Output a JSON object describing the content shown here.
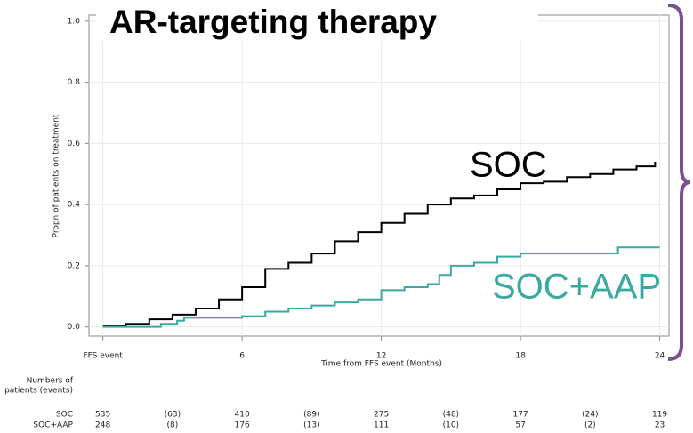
{
  "chart_data": {
    "type": "step",
    "title": "AR-targeting therapy",
    "xlabel": "Time from FFS event (Months)",
    "ylabel": "Propn of patients on treatment",
    "xlim": [
      -0.6,
      24.4
    ],
    "ylim": [
      -0.03,
      1.02
    ],
    "xticks": [
      {
        "value": 0,
        "label": "FFS event"
      },
      6,
      12,
      18,
      24
    ],
    "yticks": [
      {
        "value": 0,
        "label": "0.0"
      },
      0.2,
      0.4,
      0.6,
      0.8,
      {
        "value": 1,
        "label": "1.0"
      }
    ],
    "grid": true,
    "series": [
      {
        "name": "SOC",
        "color": "#000000",
        "x": [
          0,
          1,
          2,
          3,
          4,
          5,
          6,
          7,
          8,
          9,
          10,
          11,
          12,
          13,
          14,
          15,
          16,
          17,
          18,
          19,
          20,
          21,
          22,
          23,
          23.8
        ],
        "values": [
          0.005,
          0.01,
          0.025,
          0.04,
          0.06,
          0.09,
          0.13,
          0.19,
          0.21,
          0.24,
          0.28,
          0.31,
          0.34,
          0.37,
          0.4,
          0.42,
          0.43,
          0.45,
          0.47,
          0.475,
          0.49,
          0.5,
          0.515,
          0.525,
          0.54
        ]
      },
      {
        "name": "SOC+AAP",
        "color": "#3aa99f",
        "x": [
          0,
          2.5,
          3.2,
          3.5,
          6,
          7,
          8,
          9,
          10,
          11,
          12,
          13,
          14,
          14.5,
          15,
          16,
          17,
          18,
          22.2,
          24
        ],
        "values": [
          0,
          0.01,
          0.02,
          0.03,
          0.035,
          0.05,
          0.06,
          0.07,
          0.08,
          0.09,
          0.12,
          0.13,
          0.14,
          0.17,
          0.2,
          0.21,
          0.23,
          0.24,
          0.26,
          0.26
        ]
      }
    ],
    "annotations": [
      "SOC",
      "SOC+AAP"
    ],
    "risk_table": {
      "heading": [
        "Numbers of",
        "patients (events)"
      ],
      "rows": [
        {
          "label": "SOC",
          "cells": [
            "535",
            "(63)",
            "410",
            "(89)",
            "275",
            "(48)",
            "177",
            "(24)",
            "119"
          ]
        },
        {
          "label": "SOC+AAP",
          "cells": [
            "248",
            "(8)",
            "176",
            "(13)",
            "111",
            "(10)",
            "57",
            "(2)",
            "23"
          ]
        }
      ]
    }
  }
}
